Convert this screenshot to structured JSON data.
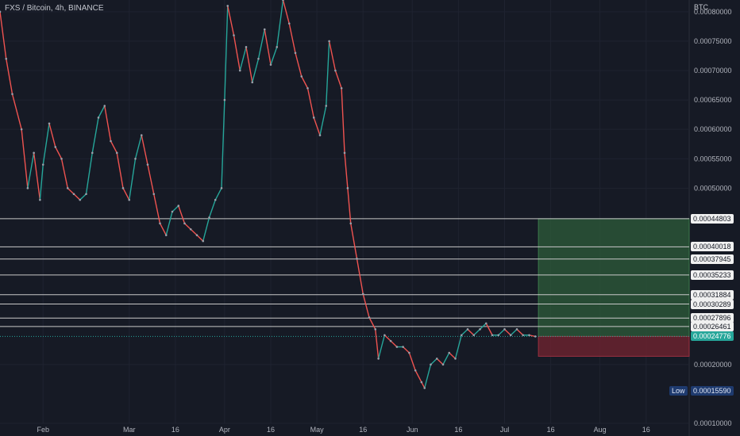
{
  "title": "FXS / Bitcoin, 4h, BINANCE",
  "price_axis_unit": "BTC",
  "low_label": "Low",
  "chart_data": {
    "type": "line",
    "title": "FXS / Bitcoin, 4h, BINANCE",
    "ylim": [
      0.0001,
      0.00082
    ],
    "y_ticks": [
      "0.00080000",
      "0.00075000",
      "0.00070000",
      "0.00065000",
      "0.00060000",
      "0.00055000",
      "0.00050000",
      "0.00020000",
      "0.00010000"
    ],
    "x_ticks": [
      {
        "label": "Feb",
        "date": "2023-02-01"
      },
      {
        "label": "Mar",
        "date": "2023-03-01"
      },
      {
        "label": "16",
        "date": "2023-03-16"
      },
      {
        "label": "Apr",
        "date": "2023-04-01"
      },
      {
        "label": "16",
        "date": "2023-04-16"
      },
      {
        "label": "May",
        "date": "2023-05-01"
      },
      {
        "label": "16",
        "date": "2023-05-16"
      },
      {
        "label": "Jun",
        "date": "2023-06-01"
      },
      {
        "label": "16",
        "date": "2023-06-16"
      },
      {
        "label": "Jul",
        "date": "2023-07-01"
      },
      {
        "label": "16",
        "date": "2023-07-16"
      },
      {
        "label": "Aug",
        "date": "2023-08-01"
      },
      {
        "label": "16",
        "date": "2023-08-16"
      }
    ],
    "xlim": [
      "2023-01-18",
      "2023-08-30"
    ],
    "series": [
      {
        "points": [
          [
            "2023-01-18",
            0.0008
          ],
          [
            "2023-01-20",
            0.00072
          ],
          [
            "2023-01-22",
            0.00066
          ],
          [
            "2023-01-25",
            0.0006
          ],
          [
            "2023-01-27",
            0.0005
          ],
          [
            "2023-01-29",
            0.00056
          ],
          [
            "2023-01-31",
            0.00048
          ],
          [
            "2023-02-01",
            0.00054
          ],
          [
            "2023-02-03",
            0.00061
          ],
          [
            "2023-02-05",
            0.00057
          ],
          [
            "2023-02-07",
            0.00055
          ],
          [
            "2023-02-09",
            0.0005
          ],
          [
            "2023-02-11",
            0.00049
          ],
          [
            "2023-02-13",
            0.00048
          ],
          [
            "2023-02-15",
            0.00049
          ],
          [
            "2023-02-17",
            0.00056
          ],
          [
            "2023-02-19",
            0.00062
          ],
          [
            "2023-02-21",
            0.00064
          ],
          [
            "2023-02-23",
            0.00058
          ],
          [
            "2023-02-25",
            0.00056
          ],
          [
            "2023-02-27",
            0.0005
          ],
          [
            "2023-03-01",
            0.00048
          ],
          [
            "2023-03-03",
            0.00055
          ],
          [
            "2023-03-05",
            0.00059
          ],
          [
            "2023-03-07",
            0.00054
          ],
          [
            "2023-03-09",
            0.00049
          ],
          [
            "2023-03-11",
            0.00044
          ],
          [
            "2023-03-13",
            0.00042
          ],
          [
            "2023-03-15",
            0.00046
          ],
          [
            "2023-03-17",
            0.00047
          ],
          [
            "2023-03-19",
            0.00044
          ],
          [
            "2023-03-21",
            0.00043
          ],
          [
            "2023-03-23",
            0.00042
          ],
          [
            "2023-03-25",
            0.00041
          ],
          [
            "2023-03-27",
            0.00045
          ],
          [
            "2023-03-29",
            0.00048
          ],
          [
            "2023-03-31",
            0.0005
          ],
          [
            "2023-04-01",
            0.00065
          ],
          [
            "2023-04-02",
            0.00081
          ],
          [
            "2023-04-04",
            0.00076
          ],
          [
            "2023-04-06",
            0.0007
          ],
          [
            "2023-04-08",
            0.00074
          ],
          [
            "2023-04-10",
            0.00068
          ],
          [
            "2023-04-12",
            0.00072
          ],
          [
            "2023-04-14",
            0.00077
          ],
          [
            "2023-04-16",
            0.00071
          ],
          [
            "2023-04-18",
            0.00074
          ],
          [
            "2023-04-20",
            0.00082
          ],
          [
            "2023-04-22",
            0.00078
          ],
          [
            "2023-04-24",
            0.00073
          ],
          [
            "2023-04-26",
            0.00069
          ],
          [
            "2023-04-28",
            0.00067
          ],
          [
            "2023-04-30",
            0.00062
          ],
          [
            "2023-05-02",
            0.00059
          ],
          [
            "2023-05-04",
            0.00064
          ],
          [
            "2023-05-05",
            0.00075
          ],
          [
            "2023-05-07",
            0.0007
          ],
          [
            "2023-05-09",
            0.00067
          ],
          [
            "2023-05-10",
            0.00056
          ],
          [
            "2023-05-11",
            0.0005
          ],
          [
            "2023-05-12",
            0.00044
          ],
          [
            "2023-05-14",
            0.00038
          ],
          [
            "2023-05-16",
            0.00032
          ],
          [
            "2023-05-18",
            0.00028
          ],
          [
            "2023-05-20",
            0.00026
          ],
          [
            "2023-05-21",
            0.00021
          ],
          [
            "2023-05-23",
            0.00025
          ],
          [
            "2023-05-25",
            0.00024
          ],
          [
            "2023-05-27",
            0.00023
          ],
          [
            "2023-05-29",
            0.00023
          ],
          [
            "2023-05-31",
            0.00022
          ],
          [
            "2023-06-02",
            0.00019
          ],
          [
            "2023-06-04",
            0.00017
          ],
          [
            "2023-06-05",
            0.00016
          ],
          [
            "2023-06-07",
            0.0002
          ],
          [
            "2023-06-09",
            0.00021
          ],
          [
            "2023-06-11",
            0.0002
          ],
          [
            "2023-06-13",
            0.00022
          ],
          [
            "2023-06-15",
            0.00021
          ],
          [
            "2023-06-17",
            0.00025
          ],
          [
            "2023-06-19",
            0.00026
          ],
          [
            "2023-06-21",
            0.00025
          ],
          [
            "2023-06-23",
            0.00026
          ],
          [
            "2023-06-25",
            0.00027
          ],
          [
            "2023-06-27",
            0.00025
          ],
          [
            "2023-06-29",
            0.00025
          ],
          [
            "2023-07-01",
            0.00026
          ],
          [
            "2023-07-03",
            0.00025
          ],
          [
            "2023-07-05",
            0.00026
          ],
          [
            "2023-07-07",
            0.00025
          ],
          [
            "2023-07-09",
            0.00025
          ],
          [
            "2023-07-11",
            0.00024776
          ]
        ]
      }
    ],
    "horizontal_levels": [
      0.00044803,
      0.00040018,
      0.00037945,
      0.00035233,
      0.00031884,
      0.00030289,
      0.00027896,
      0.00026461
    ],
    "level_labels": [
      "0.00044803",
      "0.00040018",
      "0.00037945",
      "0.00035233",
      "0.00031884",
      "0.00030289",
      "0.00027896",
      "0.00026461"
    ],
    "current_price": 0.00024776,
    "current_price_label": "0.00024776",
    "low_price": 0.0001559,
    "low_price_label": "0.00015590",
    "position": {
      "start_date": "2023-07-12",
      "end_date": "2023-08-30",
      "entry": 0.00024776,
      "target": 0.00044803,
      "stop": 0.000214
    },
    "colors": {
      "background": "#161a25",
      "up": "#26a69a",
      "down": "#ef5350",
      "line": "#9aa0aa",
      "level": "#c8c8c8",
      "profit_zone": "#2e5c3a",
      "loss_zone": "#6e2330"
    },
    "grid": true
  }
}
